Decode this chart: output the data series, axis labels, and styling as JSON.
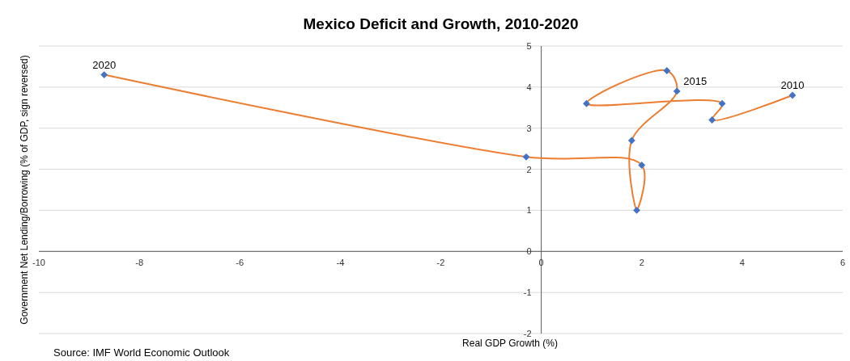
{
  "chart_data": {
    "type": "line",
    "title": "Mexico Deficit and Growth, 2010-2020",
    "xlabel": "Real GDP Growth (%)",
    "ylabel": "Government Net Lending/Borrowing (% of GDP,  sign reversed)",
    "series": [
      {
        "color": "#ed7d31",
        "x": [
          5.0,
          3.4,
          3.6,
          0.9,
          2.5,
          2.7,
          1.8,
          1.9,
          2.0,
          -0.3,
          -8.7
        ],
        "values": [
          3.8,
          3.2,
          3.6,
          3.6,
          4.4,
          3.9,
          2.7,
          1.0,
          2.1,
          2.3,
          4.3
        ]
      }
    ],
    "marker": "diamond",
    "grid": "y",
    "xlim": [
      -10,
      6
    ],
    "xticks": [
      -10,
      -8,
      -6,
      -4,
      -2,
      0,
      2,
      4,
      6
    ],
    "ylim": [
      -2,
      5
    ],
    "yticks": [
      -2,
      -1,
      0,
      1,
      2,
      3,
      4,
      5
    ],
    "annotations": [
      {
        "text": "2010",
        "x": 5.0,
        "y": 3.8
      },
      {
        "text": "2015",
        "x": 2.7,
        "y": 3.9
      },
      {
        "text": "2020",
        "x": -8.7,
        "y": 4.3
      },
      "Source: IMF World Economic Outlook"
    ]
  }
}
